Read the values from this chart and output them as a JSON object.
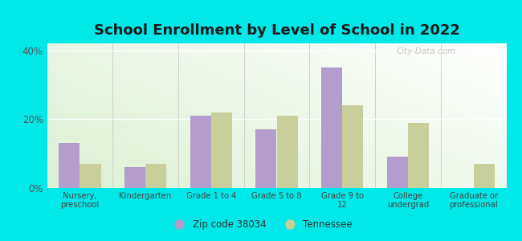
{
  "title": "School Enrollment by Level of School in 2022",
  "categories": [
    "Nursery,\npreschool",
    "Kindergarten",
    "Grade 1 to 4",
    "Grade 5 to 8",
    "Grade 9 to\n12",
    "College\nundergrad",
    "Graduate or\nprofessional"
  ],
  "zip_values": [
    13,
    6,
    21,
    17,
    35,
    9,
    0
  ],
  "tn_values": [
    7,
    7,
    22,
    21,
    24,
    19,
    7
  ],
  "zip_color": "#b39dcc",
  "tn_color": "#c8cf9a",
  "background_outer": "#00e8e8",
  "background_inner": "#e8f5e8",
  "ylim": [
    0,
    42
  ],
  "yticks": [
    0,
    20,
    40
  ],
  "ytick_labels": [
    "0%",
    "20%",
    "40%"
  ],
  "legend_zip_label": "Zip code 38034",
  "legend_tn_label": "Tennessee",
  "title_fontsize": 13,
  "bar_width": 0.32,
  "watermark": "City-Data.com"
}
